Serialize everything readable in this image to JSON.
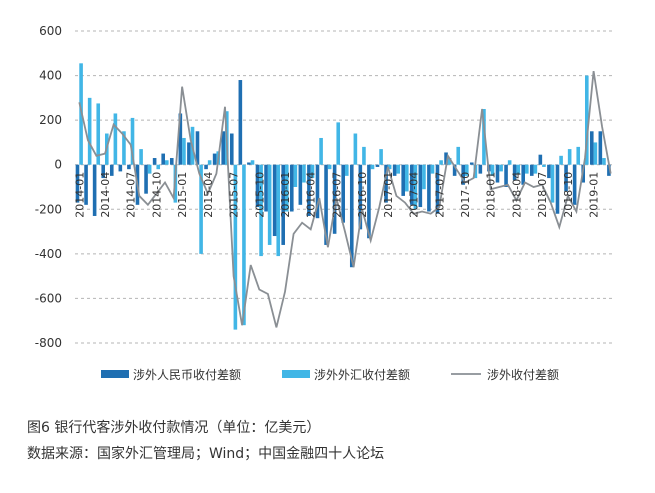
{
  "caption": {
    "title": "图6   银行代客涉外收付款情况（单位：亿美元）",
    "source": "数据来源：国家外汇管理局；Wind；中国金融四十人论坛"
  },
  "chart_data": {
    "type": "bar",
    "categories": [
      "2014-01",
      "2014-02",
      "2014-03",
      "2014-04",
      "2014-05",
      "2014-06",
      "2014-07",
      "2014-08",
      "2014-09",
      "2014-10",
      "2014-11",
      "2014-12",
      "2015-01",
      "2015-02",
      "2015-03",
      "2015-04",
      "2015-05",
      "2015-06",
      "2015-07",
      "2015-08",
      "2015-09",
      "2015-10",
      "2015-11",
      "2015-12",
      "2016-01",
      "2016-02",
      "2016-03",
      "2016-04",
      "2016-05",
      "2016-06",
      "2016-07",
      "2016-08",
      "2016-09",
      "2016-10",
      "2016-11",
      "2016-12",
      "2017-01",
      "2017-02",
      "2017-03",
      "2017-04",
      "2017-05",
      "2017-06",
      "2017-07",
      "2017-08",
      "2017-09",
      "2017-10",
      "2017-11",
      "2017-12",
      "2018-01",
      "2018-02",
      "2018-03",
      "2018-04",
      "2018-05",
      "2018-06",
      "2018-07",
      "2018-08",
      "2018-09",
      "2018-10",
      "2018-11",
      "2018-12",
      "2019-01",
      "2019-02",
      "2019-03"
    ],
    "xtick_labels": [
      "2014-01",
      "2014-04",
      "2014-07",
      "2014-10",
      "2015-01",
      "2015-04",
      "2015-07",
      "2015-10",
      "2016-01",
      "2016-04",
      "2016-07",
      "2016-10",
      "2017-01",
      "2017-04",
      "2017-07",
      "2017-10",
      "2018-01",
      "2018-04",
      "2018-07",
      "2018-10",
      "2019-01"
    ],
    "xtick_index": [
      0,
      3,
      6,
      9,
      12,
      15,
      18,
      21,
      24,
      27,
      30,
      33,
      36,
      39,
      42,
      45,
      48,
      51,
      54,
      57,
      60
    ],
    "yticks": [
      600,
      400,
      200,
      0,
      -200,
      -400,
      -600,
      -800
    ],
    "ylim": [
      -800,
      600
    ],
    "grid": true,
    "legend_position": "bottom",
    "series": [
      {
        "name": "涉外人民币收付差额",
        "kind": "bar",
        "color": "#1f6fb2",
        "values": [
          -170,
          -180,
          -230,
          -60,
          -50,
          -30,
          -20,
          -180,
          -130,
          30,
          50,
          30,
          230,
          100,
          150,
          -20,
          50,
          150,
          140,
          380,
          10,
          -190,
          -210,
          -320,
          -360,
          -210,
          -180,
          -230,
          -240,
          -360,
          -310,
          -260,
          -460,
          -290,
          -330,
          -10,
          -170,
          -50,
          -140,
          -180,
          -190,
          -210,
          -220,
          55,
          -50,
          -90,
          10,
          -40,
          -30,
          -80,
          -100,
          -70,
          -90,
          -50,
          45,
          -60,
          -220,
          -120,
          -180,
          -80,
          150,
          150,
          -50
        ]
      },
      {
        "name": "涉外外汇收付差额",
        "kind": "bar",
        "color": "#41b6e6",
        "values": [
          455,
          300,
          275,
          140,
          230,
          150,
          210,
          70,
          -40,
          -20,
          20,
          -170,
          120,
          170,
          -400,
          20,
          60,
          240,
          -740,
          -720,
          20,
          -410,
          -360,
          -410,
          -210,
          -100,
          -80,
          -60,
          120,
          -20,
          190,
          -50,
          140,
          80,
          -20,
          70,
          -20,
          -40,
          -120,
          -200,
          -110,
          -40,
          20,
          30,
          80,
          -50,
          -60,
          250,
          -50,
          -30,
          20,
          -40,
          -40,
          -40,
          -10,
          -170,
          40,
          70,
          80,
          400,
          100,
          30,
          0
        ],
        "visible_count": 62
      },
      {
        "name": "涉外收付差额",
        "kind": "line",
        "color": "#8a8f94",
        "values": [
          280,
          110,
          40,
          50,
          180,
          140,
          90,
          -140,
          -180,
          -130,
          -80,
          -150,
          350,
          110,
          -40,
          -130,
          -40,
          260,
          -500,
          -720,
          -450,
          -560,
          -580,
          -730,
          -570,
          -310,
          -260,
          -290,
          -150,
          -370,
          -150,
          -300,
          -460,
          -200,
          -340,
          -190,
          -10,
          -140,
          -170,
          -220,
          -210,
          -220,
          -190,
          40,
          -20,
          -80,
          -60,
          250,
          -110,
          -100,
          -90,
          -160,
          -80,
          -100,
          -90,
          -170,
          -280,
          -140,
          -210,
          30,
          420,
          170,
          -40
        ]
      }
    ]
  }
}
